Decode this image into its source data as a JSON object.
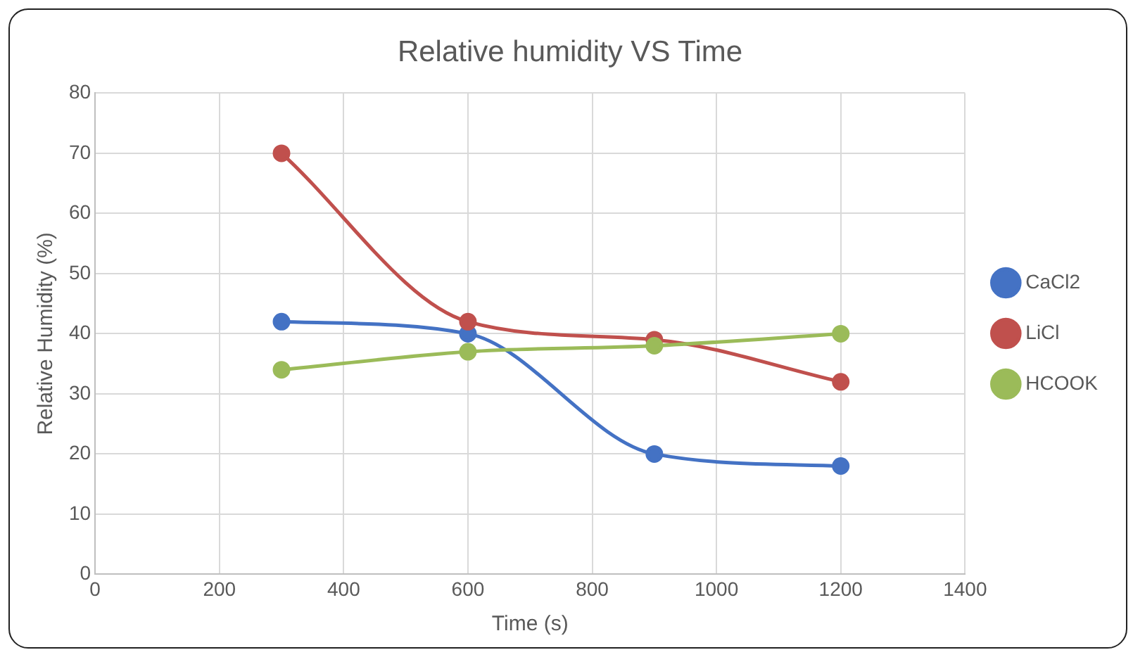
{
  "chart_data": {
    "type": "line",
    "title": "Relative humidity VS Time",
    "xlabel": "Time (s)",
    "ylabel": "Relative Humidity (%)",
    "x": [
      300,
      600,
      900,
      1200
    ],
    "series": [
      {
        "name": "CaCl2",
        "color": "#4472c4",
        "values": [
          42,
          40,
          20,
          18
        ]
      },
      {
        "name": "LiCl",
        "color": "#c0504d",
        "values": [
          70,
          42,
          39,
          32
        ]
      },
      {
        "name": "HCOOK",
        "color": "#9bbb59",
        "values": [
          34,
          37,
          38,
          40
        ]
      }
    ],
    "xlim": [
      0,
      1400
    ],
    "xticks": [
      0,
      200,
      400,
      600,
      800,
      1000,
      1200,
      1400
    ],
    "ylim": [
      0,
      80
    ],
    "yticks": [
      0,
      10,
      20,
      30,
      40,
      50,
      60,
      70,
      80
    ],
    "grid": true,
    "legend": "right",
    "marker": "circle",
    "line_style": "solid"
  }
}
